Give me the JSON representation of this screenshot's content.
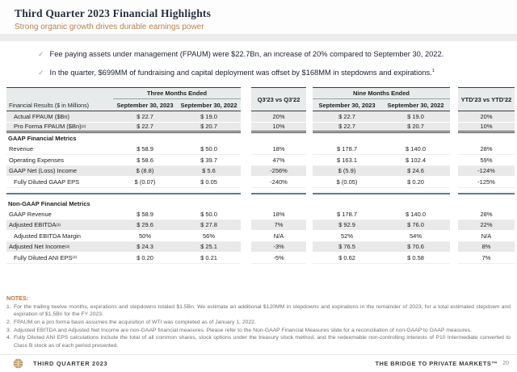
{
  "header": {
    "title": "Third Quarter 2023 Financial Highlights",
    "subtitle": "Strong organic growth drives durable earnings power"
  },
  "icons": {
    "check": "✓"
  },
  "bullets": [
    {
      "text": "Fee paying assets under management (FPAUM) were $22.7Bn, an increase of 20% compared to September 30, 2022.",
      "sup": ""
    },
    {
      "text": "In the quarter, $699MM of fundraising and capital deployment was offset by $168MM in stepdowns and expirations.",
      "sup": "1"
    }
  ],
  "table": {
    "label_header": "Financial Results ($ in Millions)",
    "groups": {
      "three_months": "Three Months Ended",
      "q3_compare": "Q3'23 vs Q3'22",
      "nine_months": "Nine Months Ended",
      "ytd_compare": "YTD'23 vs YTD'22"
    },
    "date_cols": [
      "September 30, 2023",
      "September 30, 2022"
    ],
    "rows": [
      {
        "label": "Actual FPAUM ($Bn)",
        "sup": "",
        "indent": 1,
        "shaded": true,
        "type": "data",
        "divider": "",
        "values": [
          "$ 22.7",
          "$ 19.0",
          "20%",
          "$ 22.7",
          "$ 19.0",
          "20%"
        ]
      },
      {
        "label": "Pro Forma FPAUM ($Bn)",
        "sup": "(2)",
        "indent": 1,
        "shaded": true,
        "type": "data",
        "divider": "double",
        "values": [
          "$ 22.7",
          "$ 20.7",
          "10%",
          "$ 22.7",
          "$ 20.7",
          "10%"
        ]
      },
      {
        "label": "GAAP Financial Metrics",
        "sup": "",
        "indent": 0,
        "shaded": false,
        "type": "section",
        "divider": "",
        "values": []
      },
      {
        "label": "Revenue",
        "sup": "",
        "indent": 0,
        "shaded": false,
        "type": "data",
        "divider": "",
        "values": [
          "$ 58.9",
          "$ 50.0",
          "18%",
          "$ 178.7",
          "$ 140.0",
          "28%"
        ]
      },
      {
        "label": "Operating Expenses",
        "sup": "",
        "indent": 0,
        "shaded": false,
        "type": "data",
        "divider": "",
        "values": [
          "$ 58.6",
          "$ 39.7",
          "47%",
          "$ 163.1",
          "$ 102.4",
          "59%"
        ]
      },
      {
        "label": "GAAP Net (Loss) Income",
        "sup": "",
        "indent": 0,
        "shaded": true,
        "type": "data",
        "divider": "",
        "values": [
          "$ (8.8)",
          "$ 5.6",
          "-256%",
          "$ (5.9)",
          "$ 24.6",
          "-124%"
        ]
      },
      {
        "label": "Fully Diluted GAAP EPS",
        "sup": "",
        "indent": 1,
        "shaded": false,
        "type": "data",
        "divider": "blue",
        "values": [
          "$ (0.07)",
          "$ 0.05",
          "-240%",
          "$ (0.05)",
          "$ 0.20",
          "-125%"
        ]
      },
      {
        "label": "Non-GAAP Financial Metrics",
        "sup": "",
        "indent": 0,
        "shaded": false,
        "type": "section",
        "divider": "",
        "values": []
      },
      {
        "label": "GAAP Revenue",
        "sup": "",
        "indent": 0,
        "shaded": false,
        "type": "data",
        "divider": "",
        "values": [
          "$ 58.9",
          "$ 50.0",
          "18%",
          "$ 178.7",
          "$ 140.0",
          "28%"
        ]
      },
      {
        "label": "Adjusted EBITDA",
        "sup": "(3)",
        "indent": 0,
        "shaded": true,
        "type": "data",
        "divider": "",
        "values": [
          "$ 29.6",
          "$ 27.8",
          "7%",
          "$ 92.9",
          "$ 76.0",
          "22%"
        ]
      },
      {
        "label": "Adjusted EBITDA Margin",
        "sup": "",
        "indent": 1,
        "shaded": false,
        "type": "data",
        "divider": "",
        "values": [
          "50%",
          "56%",
          "N/A",
          "52%",
          "54%",
          "N/A"
        ]
      },
      {
        "label": "Adjusted Net Income",
        "sup": "(3)",
        "indent": 0,
        "shaded": true,
        "type": "data",
        "divider": "",
        "values": [
          "$ 24.3",
          "$ 25.1",
          "-3%",
          "$ 76.5",
          "$ 70.6",
          "8%"
        ]
      },
      {
        "label": "Fully Diluted ANI EPS",
        "sup": "(4)",
        "indent": 1,
        "shaded": false,
        "type": "data",
        "divider": "",
        "values": [
          "$ 0.20",
          "$ 0.21",
          "-5%",
          "$ 0.62",
          "$ 0.58",
          "7%"
        ]
      }
    ]
  },
  "notes": {
    "heading": "NOTES:",
    "items": [
      {
        "num": "1.",
        "text": "For the trailing twelve months, expirations and stepdowns totaled $1.5Bn. We estimate an additional $120MM in stepdowns and expirations in the remainder of 2023, for a total estimated stepdown and expiration of $1.5Bn for the FY 2023."
      },
      {
        "num": "2.",
        "text": "FPAUM on a pro forma basis assumes the acquisition of WTI was completed as of January 1, 2022."
      },
      {
        "num": "3.",
        "text": "Adjusted EBITDA and Adjusted Net Income are non-GAAP financial measures. Please refer to the Non-GAAP Financial Measures slide for a reconciliation of non-GAAP to GAAP measures."
      },
      {
        "num": "4.",
        "text": "Fully Diluted ANI EPS calculations include the total of all common shares, stock options under the treasury stock method, and the redeemable non-controlling interests of P10 Intermediate converted to Class B stock as of each period presented."
      }
    ]
  },
  "footer": {
    "left": "THIRD QUARTER 2023",
    "right": "THE BRIDGE TO PRIVATE MARKETS™",
    "page": "20"
  },
  "colors": {
    "title_navy": "#25303f",
    "accent_tan": "#b5834f",
    "notes_orange": "#c0703a",
    "divider_blue": "#5b7e93",
    "table_header_bg": "#e7ebeb",
    "shaded_row": "#e9e9e9",
    "logo_gold": "#c29a62"
  }
}
